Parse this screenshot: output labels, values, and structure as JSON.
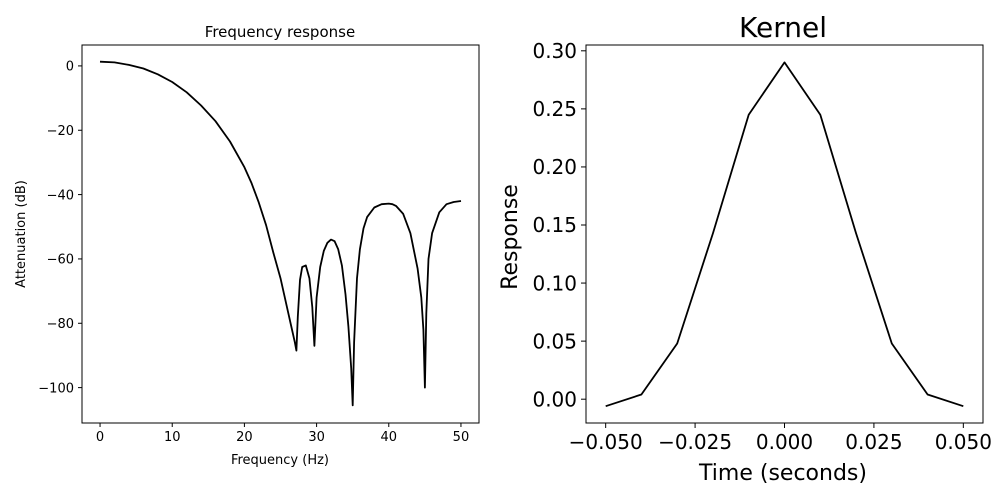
{
  "chart_data": [
    {
      "type": "line",
      "title": "Frequency response",
      "xlabel": "Frequency (Hz)",
      "ylabel": "Attenuation (dB)",
      "xlim": [
        -2.5,
        52.5
      ],
      "ylim": [
        -111,
        6.5
      ],
      "xticks": [
        0,
        10,
        20,
        30,
        40,
        50
      ],
      "xtick_labels": [
        "0",
        "10",
        "20",
        "30",
        "40",
        "50"
      ],
      "yticks": [
        0,
        -20,
        -40,
        -60,
        -80,
        -100
      ],
      "ytick_labels": [
        "0",
        "−20",
        "−40",
        "−60",
        "−80",
        "−100"
      ],
      "grid": false,
      "series": [
        {
          "color": "#000000",
          "x": [
            0,
            2,
            4,
            6,
            8,
            10,
            12,
            14,
            16,
            18,
            20,
            21,
            22,
            23,
            24,
            25,
            25.5,
            26,
            26.5,
            27.0,
            27.2,
            27.4,
            27.7,
            28.0,
            28.5,
            29.0,
            29.4,
            29.7,
            30.0,
            30.5,
            31.0,
            31.5,
            32.0,
            32.5,
            33.0,
            33.5,
            34.0,
            34.4,
            34.8,
            35.0,
            35.2,
            35.6,
            36.0,
            36.5,
            37.0,
            38.0,
            39.0,
            40.0,
            40.5,
            41.0,
            42.0,
            43.0,
            44.0,
            44.5,
            44.8,
            45.0,
            45.2,
            45.5,
            46.0,
            47.0,
            48.0,
            49.0,
            50.0
          ],
          "y": [
            1.3,
            1.1,
            0.3,
            -0.8,
            -2.6,
            -5.0,
            -8.2,
            -12.3,
            -17.2,
            -23.5,
            -31.5,
            -36.5,
            -42.5,
            -49.5,
            -58.0,
            -66.0,
            -71.0,
            -76.0,
            -81.0,
            -86.0,
            -88.5,
            -78.0,
            -66.5,
            -62.5,
            -62.0,
            -66.0,
            -75.0,
            -87.0,
            -72.0,
            -62.5,
            -57.5,
            -55.0,
            -54.0,
            -54.5,
            -57.0,
            -62.0,
            -71.0,
            -81.0,
            -94.0,
            -105.5,
            -86.0,
            -66.0,
            -57.0,
            -50.5,
            -47.0,
            -44.0,
            -43.0,
            -42.8,
            -43.0,
            -43.5,
            -46.0,
            -52.0,
            -63.0,
            -72.0,
            -82.0,
            -100.0,
            -77.0,
            -60.0,
            -52.0,
            -45.5,
            -43.0,
            -42.3,
            -42.0
          ]
        }
      ]
    },
    {
      "type": "line",
      "title": "Kernel",
      "xlabel": "Time (seconds)",
      "ylabel": "Response",
      "xlim": [
        -0.0555,
        0.0555
      ],
      "ylim": [
        -0.0205,
        0.305
      ],
      "xticks": [
        -0.05,
        -0.025,
        0.0,
        0.025,
        0.05
      ],
      "xtick_labels": [
        "−0.050",
        "−0.025",
        "0.000",
        "0.025",
        "0.050"
      ],
      "yticks": [
        0.0,
        0.05,
        0.1,
        0.15,
        0.2,
        0.25,
        0.3
      ],
      "ytick_labels": [
        "0.00",
        "0.05",
        "0.10",
        "0.15",
        "0.20",
        "0.25",
        "0.30"
      ],
      "grid": false,
      "series": [
        {
          "color": "#000000",
          "x": [
            -0.05,
            -0.04,
            -0.03,
            -0.02,
            -0.01,
            0.0,
            0.01,
            0.02,
            0.03,
            0.04,
            0.05
          ],
          "y": [
            -0.006,
            0.004,
            0.048,
            0.143,
            0.245,
            0.29,
            0.245,
            0.143,
            0.048,
            0.004,
            -0.006
          ]
        }
      ]
    }
  ]
}
